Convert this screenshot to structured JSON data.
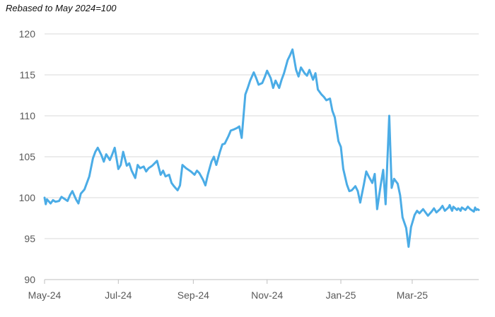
{
  "chart_data": {
    "type": "line",
    "title": "",
    "subtitle": "Rebased to May 2024=100",
    "xlabel": "",
    "ylabel": "",
    "ylim": [
      90,
      120
    ],
    "y_ticks": [
      90,
      95,
      100,
      105,
      110,
      115,
      120
    ],
    "x_tick_labels": [
      "May-24",
      "Jul-24",
      "Sep-24",
      "Nov-24",
      "Jan-25",
      "Mar-25"
    ],
    "x_start": "2024-05-01",
    "x_end": "2025-04-25",
    "x_tick_dates": [
      "2024-05-01",
      "2024-07-01",
      "2024-09-01",
      "2024-11-01",
      "2025-01-01",
      "2025-03-01"
    ],
    "grid": "horizontal",
    "legend": "none",
    "colors": {
      "series": "#4BACE6",
      "grid": "#d9d9d9",
      "axis": "#bfbfbf",
      "tick_text": "#595959"
    },
    "series": [
      {
        "x": [
          "2024-05-01",
          "2024-05-02",
          "2024-05-03",
          "2024-05-06",
          "2024-05-08",
          "2024-05-10",
          "2024-05-13",
          "2024-05-15",
          "2024-05-17",
          "2024-05-20",
          "2024-05-22",
          "2024-05-24",
          "2024-05-27",
          "2024-05-29",
          "2024-05-31",
          "2024-06-03",
          "2024-06-05",
          "2024-06-07",
          "2024-06-10",
          "2024-06-12",
          "2024-06-14",
          "2024-06-17",
          "2024-06-19",
          "2024-06-21",
          "2024-06-24",
          "2024-06-26",
          "2024-06-28",
          "2024-07-01",
          "2024-07-03",
          "2024-07-05",
          "2024-07-08",
          "2024-07-10",
          "2024-07-12",
          "2024-07-15",
          "2024-07-17",
          "2024-07-19",
          "2024-07-22",
          "2024-07-24",
          "2024-07-26",
          "2024-07-29",
          "2024-07-31",
          "2024-08-02",
          "2024-08-05",
          "2024-08-07",
          "2024-08-09",
          "2024-08-12",
          "2024-08-14",
          "2024-08-16",
          "2024-08-19",
          "2024-08-21",
          "2024-08-23",
          "2024-08-26",
          "2024-08-28",
          "2024-08-30",
          "2024-09-02",
          "2024-09-04",
          "2024-09-06",
          "2024-09-09",
          "2024-09-11",
          "2024-09-13",
          "2024-09-16",
          "2024-09-18",
          "2024-09-20",
          "2024-09-23",
          "2024-09-25",
          "2024-09-27",
          "2024-09-30",
          "2024-10-02",
          "2024-10-04",
          "2024-10-07",
          "2024-10-09",
          "2024-10-11",
          "2024-10-14",
          "2024-10-16",
          "2024-10-18",
          "2024-10-21",
          "2024-10-23",
          "2024-10-25",
          "2024-10-28",
          "2024-10-30",
          "2024-11-01",
          "2024-11-04",
          "2024-11-06",
          "2024-11-08",
          "2024-11-11",
          "2024-11-13",
          "2024-11-15",
          "2024-11-18",
          "2024-11-20",
          "2024-11-22",
          "2024-11-25",
          "2024-11-27",
          "2024-11-29",
          "2024-12-02",
          "2024-12-04",
          "2024-12-06",
          "2024-12-09",
          "2024-12-11",
          "2024-12-13",
          "2024-12-16",
          "2024-12-18",
          "2024-12-20",
          "2024-12-23",
          "2024-12-25",
          "2024-12-27",
          "2024-12-30",
          "2025-01-01",
          "2025-01-03",
          "2025-01-06",
          "2025-01-08",
          "2025-01-10",
          "2025-01-13",
          "2025-01-15",
          "2025-01-17",
          "2025-01-20",
          "2025-01-22",
          "2025-01-24",
          "2025-01-27",
          "2025-01-29",
          "2025-01-31",
          "2025-02-03",
          "2025-02-05",
          "2025-02-07",
          "2025-02-10",
          "2025-02-12",
          "2025-02-14",
          "2025-02-17",
          "2025-02-19",
          "2025-02-21",
          "2025-02-24",
          "2025-02-26",
          "2025-02-28",
          "2025-03-03",
          "2025-03-05",
          "2025-03-07",
          "2025-03-10",
          "2025-03-12",
          "2025-03-14",
          "2025-03-17",
          "2025-03-19",
          "2025-03-21",
          "2025-03-24",
          "2025-03-26",
          "2025-03-28",
          "2025-03-31",
          "2025-04-01",
          "2025-04-02",
          "2025-04-03",
          "2025-04-04",
          "2025-04-07",
          "2025-04-08",
          "2025-04-09",
          "2025-04-10",
          "2025-04-11",
          "2025-04-14",
          "2025-04-16",
          "2025-04-18",
          "2025-04-21",
          "2025-04-22",
          "2025-04-23",
          "2025-04-24",
          "2025-04-25"
        ],
        "values": [
          100.0,
          99.2,
          99.8,
          99.3,
          99.7,
          99.5,
          99.6,
          100.1,
          99.9,
          99.6,
          100.3,
          100.8,
          99.8,
          99.3,
          100.5,
          101.0,
          101.8,
          102.6,
          104.8,
          105.6,
          106.1,
          105.2,
          104.4,
          105.3,
          104.6,
          105.3,
          106.1,
          103.5,
          104.0,
          105.6,
          103.9,
          104.2,
          103.3,
          102.4,
          104.0,
          103.6,
          103.8,
          103.2,
          103.6,
          103.9,
          104.2,
          104.5,
          102.8,
          103.3,
          102.6,
          102.8,
          101.8,
          101.4,
          100.9,
          101.5,
          104.0,
          103.6,
          103.4,
          103.2,
          102.8,
          103.3,
          103.0,
          102.2,
          101.5,
          102.8,
          104.4,
          105.0,
          104.0,
          105.6,
          106.5,
          106.6,
          107.5,
          108.2,
          108.3,
          108.5,
          108.7,
          107.3,
          112.6,
          113.4,
          114.3,
          115.3,
          114.6,
          113.8,
          114.0,
          114.7,
          115.5,
          114.6,
          113.4,
          114.3,
          113.4,
          114.4,
          115.2,
          116.8,
          117.4,
          118.1,
          115.6,
          114.8,
          115.9,
          115.2,
          114.9,
          115.6,
          114.4,
          115.2,
          113.2,
          112.6,
          112.3,
          111.9,
          112.1,
          110.6,
          109.8,
          106.9,
          106.2,
          103.5,
          101.6,
          100.8,
          100.9,
          101.4,
          100.8,
          99.4,
          101.6,
          103.2,
          102.6,
          101.8,
          102.9,
          98.6,
          101.6,
          103.4,
          99.2,
          110.0,
          101.2,
          102.3,
          101.7,
          100.3,
          97.6,
          96.3,
          94.0,
          96.4,
          97.9,
          98.4,
          98.1,
          98.6,
          98.2,
          97.8,
          98.3,
          98.7,
          98.2,
          98.6,
          99.0,
          98.4,
          98.8,
          99.1,
          98.7,
          98.4,
          98.9,
          98.5,
          98.7,
          98.6,
          98.4,
          98.8,
          98.5,
          98.9,
          98.6,
          98.3,
          98.8,
          98.5,
          98.6,
          98.5
        ]
      }
    ]
  }
}
